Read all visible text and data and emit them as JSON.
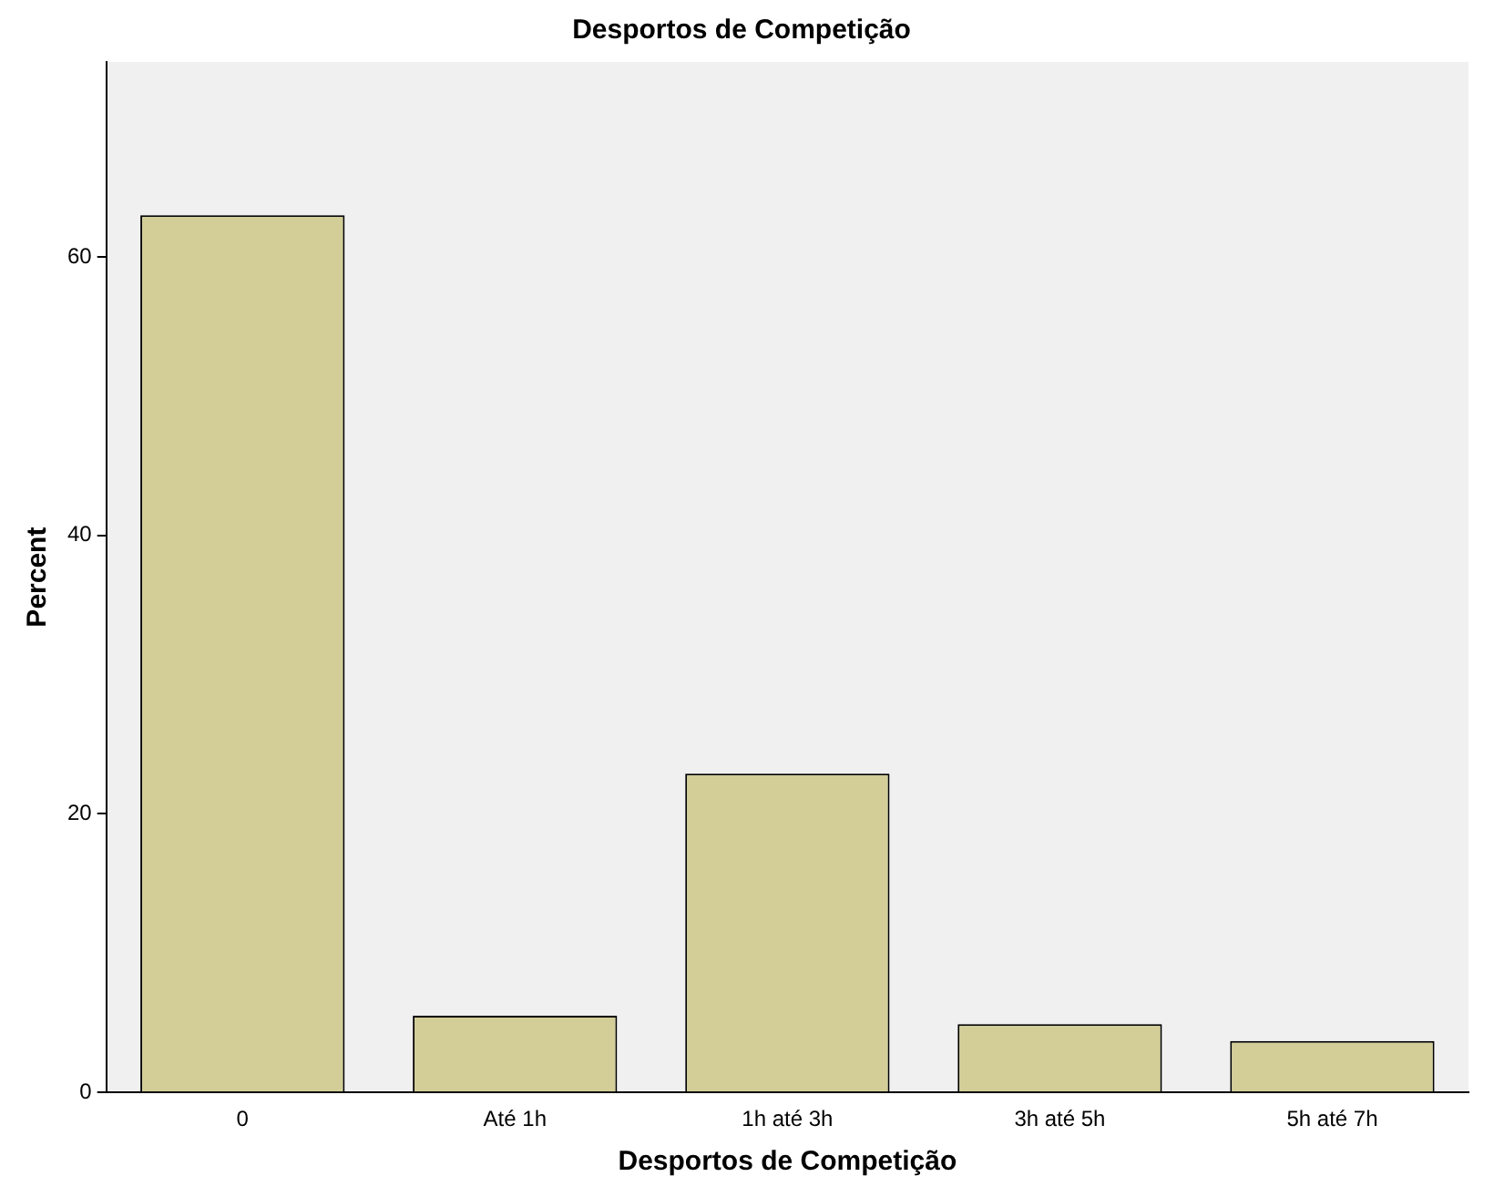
{
  "chart_data": {
    "type": "bar",
    "title": "Desportos de Competição",
    "xlabel": "Desportos de Competição",
    "ylabel": "Percent",
    "categories": [
      "0",
      "Até 1h",
      "1h até 3h",
      "3h até 5h",
      "5h até 7h"
    ],
    "values": [
      63.0,
      5.5,
      22.9,
      4.9,
      3.7
    ],
    "color": "#d3ce97",
    "ylim": [
      0,
      74
    ],
    "yticks": [
      0,
      20,
      40,
      60
    ],
    "grid": false,
    "legend": false
  }
}
